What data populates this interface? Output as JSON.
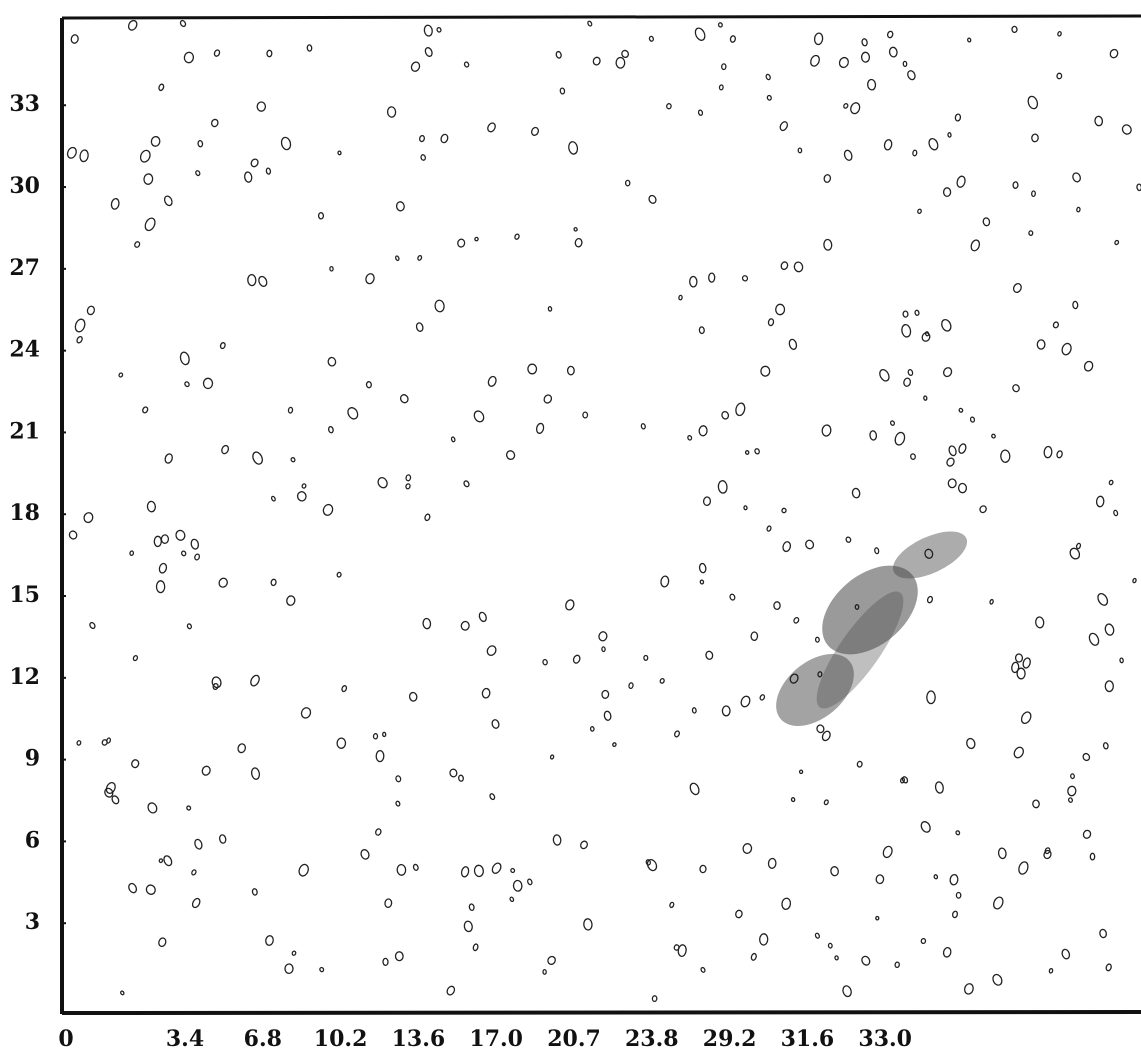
{
  "axes": {
    "y_range": [
      0,
      36.2
    ],
    "y_ticks": [
      3,
      6,
      9,
      12,
      15,
      18,
      21,
      24,
      27,
      30,
      33
    ],
    "x_labels": [
      "0",
      "3.4",
      "6.8",
      "10.2",
      "13.6",
      "17.0",
      "20.7",
      "23.8",
      "29.2",
      "31.6",
      "33.0"
    ]
  }
}
